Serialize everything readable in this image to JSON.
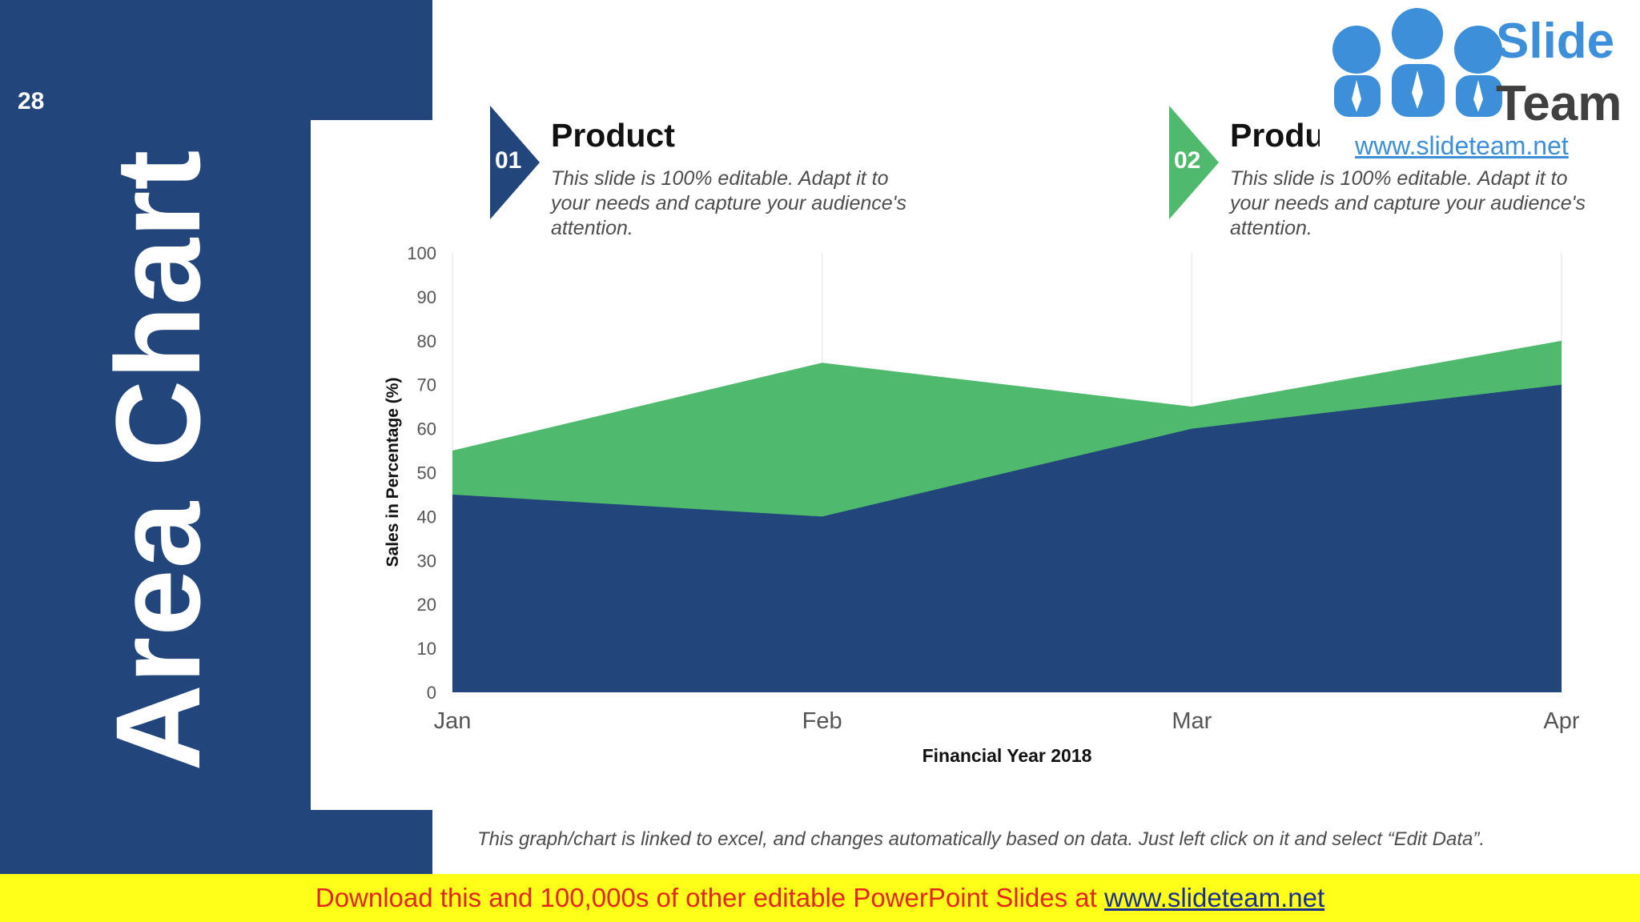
{
  "slide": {
    "number": "28",
    "title": "Area Chart",
    "footnote": "This graph/chart is linked to excel, and changes automatically based on data. Just left click on it and select “Edit Data”."
  },
  "products": [
    {
      "number": "01",
      "title": "Product",
      "description": "This slide is 100% editable. Adapt it to your needs and capture your audience's attention.",
      "color": "#22467b"
    },
    {
      "number": "02",
      "title": "Product",
      "description": "This slide is 100% editable. Adapt it to your needs and capture your audience's attention.",
      "color": "#4fb96e"
    }
  ],
  "logo": {
    "word1": "Slide",
    "word2": "Team",
    "url": "www.slideteam.net"
  },
  "banner": {
    "text": "Download this and 100,000s of other editable PowerPoint Slides at ",
    "link": "www.slideteam.net"
  },
  "colors": {
    "navy": "#22467b",
    "green": "#4fb96e",
    "banner_bg": "#ffff1a",
    "banner_text": "#e3261c"
  },
  "chart_data": {
    "type": "area",
    "stacked": false,
    "categories": [
      "Jan",
      "Feb",
      "Mar",
      "Apr"
    ],
    "series": [
      {
        "values": [
          55,
          75,
          65,
          80
        ],
        "color": "#4fb96e"
      },
      {
        "values": [
          45,
          40,
          60,
          70
        ],
        "color": "#22467b"
      }
    ],
    "xlabel": "Financial Year 2018",
    "ylabel": "Sales in Percentage (%)",
    "ylim": [
      0,
      100
    ],
    "yticks": [
      0,
      10,
      20,
      30,
      40,
      50,
      60,
      70,
      80,
      90,
      100
    ],
    "grid": "vertical",
    "legend": "none"
  }
}
